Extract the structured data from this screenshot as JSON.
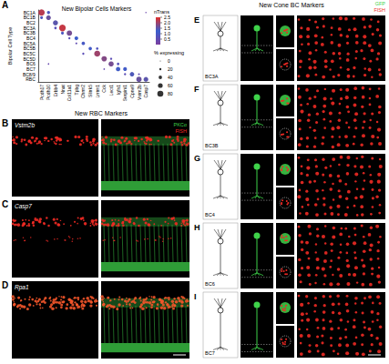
{
  "panel_A": {
    "letter": "A"
  },
  "chart_data": {
    "type": "scatter",
    "title": "New Bipolar Cells Markers",
    "categories": [
      "Pcdh17",
      "Pcdh10",
      "Erbb4",
      "Nnat",
      "Col11a1",
      "Tpbg",
      "Chrm2",
      "Slitrk5",
      "Lrrtm1",
      "Cck",
      "Lect1",
      "Igfn1",
      "Serpini1",
      "Cpne9",
      "Vstm2b",
      "Casp7"
    ],
    "y_categories": [
      "BC1A",
      "BC1B",
      "BC2",
      "BC3A",
      "BC3B",
      "BC4",
      "BC5A",
      "BC5B",
      "BC5C",
      "BC5D",
      "BC6",
      "BC7",
      "BC8/9",
      "RBC"
    ],
    "ylabel": "Bipolar Cell Type",
    "cells": [
      {
        "x": "Pcdh17",
        "y": "BC1A",
        "value": 2.2,
        "size": 85
      },
      {
        "x": "Pcdh17",
        "y": "BC1B",
        "value": 0.8,
        "size": 30
      },
      {
        "x": "Pcdh10",
        "y": "BC1A",
        "value": 0.9,
        "size": 35
      },
      {
        "x": "Pcdh10",
        "y": "BC1B",
        "value": 1.6,
        "size": 60
      },
      {
        "x": "Pcdh10",
        "y": "BC6",
        "value": 0.4,
        "size": 8
      },
      {
        "x": "Erbb4",
        "y": "BC2",
        "value": 1.5,
        "size": 65
      },
      {
        "x": "Erbb4",
        "y": "BC3A",
        "value": 0.7,
        "size": 25
      },
      {
        "x": "Nnat",
        "y": "BC3A",
        "value": 2.3,
        "size": 90
      },
      {
        "x": "Nnat",
        "y": "BC3B",
        "value": 0.9,
        "size": 30
      },
      {
        "x": "Col11a1",
        "y": "BC3B",
        "value": 1.7,
        "size": 70
      },
      {
        "x": "Col11a1",
        "y": "BC4",
        "value": 0.6,
        "size": 20
      },
      {
        "x": "Tpbg",
        "y": "BC4",
        "value": 1.2,
        "size": 45
      },
      {
        "x": "Tpbg",
        "y": "BC5A",
        "value": 0.5,
        "size": 15
      },
      {
        "x": "Chrm2",
        "y": "BC5A",
        "value": 1.0,
        "size": 40
      },
      {
        "x": "Chrm2",
        "y": "BC5C",
        "value": 0.6,
        "size": 20
      },
      {
        "x": "Slitrk5",
        "y": "BC5B",
        "value": 1.1,
        "size": 40
      },
      {
        "x": "Lrrtm1",
        "y": "BC5B",
        "value": 0.8,
        "size": 25
      },
      {
        "x": "Lrrtm1",
        "y": "BC5C",
        "value": 2.0,
        "size": 80
      },
      {
        "x": "Cck",
        "y": "BC5D",
        "value": 1.8,
        "size": 70
      },
      {
        "x": "Cck",
        "y": "BC7",
        "value": 0.4,
        "size": 10
      },
      {
        "x": "Lect1",
        "y": "BC5D",
        "value": 0.6,
        "size": 20
      },
      {
        "x": "Lect1",
        "y": "BC6",
        "value": 1.7,
        "size": 65
      },
      {
        "x": "Igfn1",
        "y": "BC6",
        "value": 0.7,
        "size": 25
      },
      {
        "x": "Igfn1",
        "y": "BC7",
        "value": 1.3,
        "size": 55
      },
      {
        "x": "Serpini1",
        "y": "BC7",
        "value": 1.1,
        "size": 45
      },
      {
        "x": "Serpini1",
        "y": "BC8/9",
        "value": 0.6,
        "size": 20
      },
      {
        "x": "Cpne9",
        "y": "BC8/9",
        "value": 1.4,
        "size": 55
      },
      {
        "x": "Vstm2b",
        "y": "BC8/9",
        "value": 0.5,
        "size": 15
      },
      {
        "x": "Vstm2b",
        "y": "RBC",
        "value": 1.6,
        "size": 70
      },
      {
        "x": "Casp7",
        "y": "BC1A",
        "value": 0.3,
        "size": 5
      },
      {
        "x": "Casp7",
        "y": "RBC",
        "value": 1.5,
        "size": 60
      }
    ],
    "color_label": "nTrans",
    "color_range": [
      0,
      2.5
    ],
    "color_ticks": [
      0.5,
      {
        "value": 1,
        "label": "1.0"
      },
      1.5,
      {
        "value": 2,
        "label": "2.0"
      },
      2.5
    ],
    "size_label": "% expressing",
    "size_ticks": [
      0,
      20,
      40,
      60,
      80
    ]
  },
  "rbc_panels": {
    "title": "New RBC Markers",
    "legend": [
      {
        "name": "PKCα",
        "color": "#3fd24a"
      },
      {
        "name": "FISH",
        "color": "#ee2a24"
      }
    ],
    "rows": [
      {
        "letter": "B",
        "gene": "Vstm2b"
      },
      {
        "letter": "C",
        "gene": "Casp7"
      },
      {
        "letter": "D",
        "gene": "Rpa1"
      }
    ]
  },
  "cone_panels": {
    "title": "New Cone BC Markers",
    "legend": [
      {
        "name": "GFP",
        "color": "#3fd24a"
      },
      {
        "name": "FISH",
        "color": "#ee2a24"
      }
    ],
    "rows": [
      {
        "letter": "E",
        "cell_type": "BC3A"
      },
      {
        "letter": "F",
        "cell_type": "BC3B"
      },
      {
        "letter": "G",
        "cell_type": "BC4"
      },
      {
        "letter": "H",
        "cell_type": "BC6"
      },
      {
        "letter": "I",
        "cell_type": "BC7"
      }
    ]
  }
}
